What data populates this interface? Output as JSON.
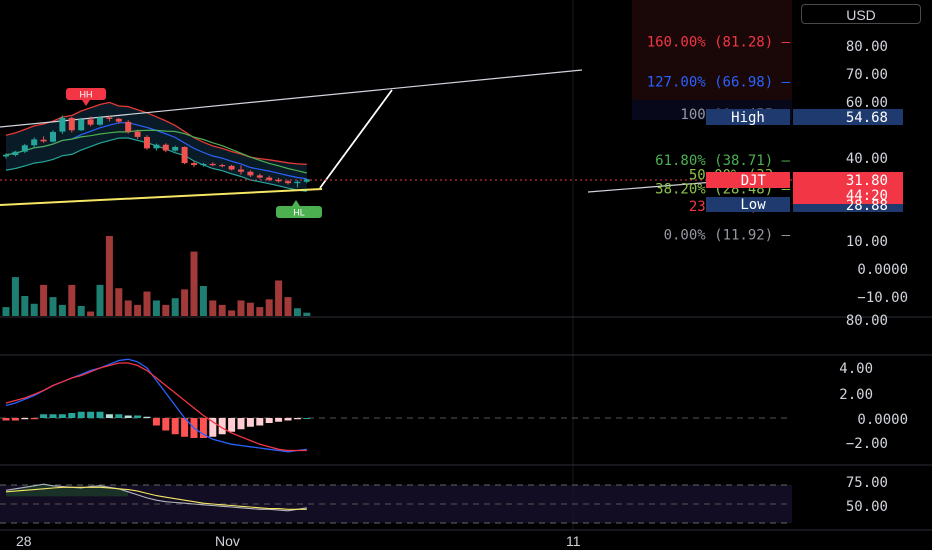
{
  "currency_button": "USD",
  "colors": {
    "up": "#26a69a",
    "down": "#ef5350",
    "fib_red": "#f23645",
    "fib_blue": "#2962ff",
    "fib_gray": "#9598a1",
    "fib_green": "#4caf50",
    "fib_lime": "#8bc34a",
    "trendline": "#ffffff",
    "support": "#f5e663",
    "macd": "#2962ff",
    "signal": "#f23645"
  },
  "price_axis": [
    "80.00",
    "70.00",
    "60.00",
    "50.00",
    "40.00",
    "30.00",
    "20.00",
    "10.00",
    "0.0000",
    "−10.00",
    "80.00"
  ],
  "macd_axis": [
    "4.00",
    "2.00",
    "0.0000",
    "−2.00"
  ],
  "rsi_axis": [
    "75.00",
    "50.00"
  ],
  "date_axis": [
    "28",
    "Nov",
    "11"
  ],
  "price_tags": {
    "high_label": "High",
    "high_value": "54.68",
    "ticker": "DJT",
    "last_price": "31.80",
    "countdown": "44:20",
    "low_label": "Low",
    "low_value": "28.88"
  },
  "fib_levels": [
    {
      "text": "160.00% (81.28)",
      "ratio": 1.6,
      "price": 81.28,
      "color": "#f23645"
    },
    {
      "text": "127.00% (66.98)",
      "ratio": 1.27,
      "price": 66.98,
      "color": "#2962ff"
    },
    {
      "text": "100.00% (55",
      "ratio": 1.0,
      "price": 55.2,
      "color": "#9598a1"
    },
    {
      "text": "61.80% (38.71)",
      "ratio": 0.618,
      "price": 38.71,
      "color": "#4caf50"
    },
    {
      "text": "50.00% (33",
      "ratio": 0.5,
      "price": 33.6,
      "color": "#8bc34a"
    },
    {
      "text": "38.20% (28.48)",
      "ratio": 0.382,
      "price": 28.48,
      "color": "#8bc34a"
    },
    {
      "text": "23.60% (22",
      "ratio": 0.236,
      "price": 22.2,
      "color": "#f23645"
    },
    {
      "text": "0.00% (11.92)",
      "ratio": 0.0,
      "price": 11.92,
      "color": "#9598a1"
    }
  ],
  "annotations": {
    "hh": "HH",
    "hl": "HL"
  },
  "chart_data": {
    "type": "candlestick",
    "symbol": "DJT",
    "candles": [
      [
        40.0,
        41.2,
        39.2,
        40.6
      ],
      [
        40.5,
        42.0,
        40.0,
        41.7
      ],
      [
        41.7,
        44.5,
        41.2,
        44.0
      ],
      [
        44.0,
        46.8,
        43.0,
        46.1
      ],
      [
        46.0,
        47.2,
        44.9,
        45.4
      ],
      [
        45.3,
        49.4,
        45.0,
        48.8
      ],
      [
        48.9,
        54.7,
        48.1,
        53.8
      ],
      [
        53.8,
        54.2,
        48.6,
        49.4
      ],
      [
        49.4,
        53.9,
        49.1,
        53.3
      ],
      [
        53.3,
        54.3,
        50.8,
        51.4
      ],
      [
        51.4,
        54.4,
        51.0,
        54.0
      ],
      [
        54.0,
        54.6,
        52.6,
        53.5
      ],
      [
        53.5,
        53.9,
        51.8,
        52.5
      ],
      [
        52.4,
        53.0,
        48.2,
        48.9
      ],
      [
        48.9,
        49.6,
        46.3,
        47.0
      ],
      [
        47.0,
        47.6,
        42.4,
        42.9
      ],
      [
        42.9,
        44.6,
        42.1,
        44.2
      ],
      [
        44.2,
        44.7,
        41.5,
        42.1
      ],
      [
        42.1,
        43.9,
        41.7,
        43.4
      ],
      [
        43.4,
        43.6,
        37.2,
        37.6
      ],
      [
        37.6,
        38.3,
        36.2,
        36.9
      ],
      [
        36.9,
        37.7,
        36.3,
        37.3
      ],
      [
        37.3,
        37.9,
        36.5,
        36.9
      ],
      [
        36.9,
        37.4,
        36.1,
        36.6
      ],
      [
        36.6,
        37.0,
        35.0,
        35.3
      ],
      [
        35.3,
        36.8,
        33.5,
        34.5
      ],
      [
        34.5,
        35.0,
        32.6,
        33.2
      ],
      [
        33.2,
        33.8,
        32.0,
        32.4
      ],
      [
        32.4,
        33.1,
        31.1,
        31.6
      ],
      [
        31.6,
        32.3,
        30.6,
        31.1
      ],
      [
        31.1,
        31.6,
        29.9,
        30.4
      ],
      [
        30.4,
        31.4,
        28.9,
        30.9
      ],
      [
        30.9,
        31.9,
        30.4,
        31.8
      ]
    ],
    "volume": [
      8,
      35,
      18,
      11,
      28,
      17,
      10,
      28,
      9,
      4,
      28,
      72,
      25,
      14,
      10,
      22,
      14,
      10,
      16,
      24,
      58,
      27,
      14,
      10,
      5,
      14,
      12,
      8,
      15,
      32,
      17,
      7,
      3
    ],
    "macd": [
      1.0,
      1.2,
      1.5,
      1.8,
      2.2,
      2.6,
      2.9,
      3.2,
      3.5,
      3.8,
      4.0,
      4.3,
      4.6,
      4.7,
      4.5,
      4.0,
      3.0,
      2.0,
      1.0,
      0.0,
      -0.8,
      -1.3,
      -1.7,
      -1.9,
      -2.1,
      -2.2,
      -2.3,
      -2.4,
      -2.5,
      -2.6,
      -2.7,
      -2.6,
      -2.5
    ],
    "signal": [
      1.2,
      1.4,
      1.6,
      1.9,
      2.2,
      2.6,
      2.9,
      3.2,
      3.4,
      3.7,
      4.0,
      4.2,
      4.4,
      4.4,
      4.2,
      3.8,
      3.2,
      2.6,
      2.0,
      1.4,
      0.8,
      0.2,
      -0.3,
      -0.8,
      -1.2,
      -1.5,
      -1.8,
      -2.1,
      -2.3,
      -2.5,
      -2.6,
      -2.6,
      -2.6
    ],
    "histogram": [
      -0.2,
      -0.2,
      -0.1,
      -0.1,
      0.3,
      0.3,
      0.3,
      0.4,
      0.5,
      0.5,
      0.5,
      0.3,
      0.3,
      0.2,
      0.2,
      0.1,
      -0.6,
      -1.0,
      -1.3,
      -1.5,
      -1.6,
      -1.6,
      -1.5,
      -1.3,
      -1.1,
      -0.9,
      -0.7,
      -0.6,
      -0.4,
      -0.3,
      -0.2,
      -0.1,
      0.0
    ],
    "rsi": [
      68,
      70,
      72,
      74,
      76,
      74,
      73,
      72,
      71,
      73,
      74,
      72,
      70,
      66,
      62,
      58,
      55,
      53,
      52,
      51,
      50,
      49,
      48,
      47,
      46,
      45,
      44,
      43,
      43,
      42,
      41,
      43,
      45
    ],
    "rsi_ma": [
      66,
      67,
      68,
      69,
      70,
      71,
      72,
      72,
      72,
      72,
      72,
      71,
      70,
      69,
      67,
      64,
      61,
      59,
      57,
      55,
      53,
      51,
      50,
      49,
      48,
      47,
      46,
      45,
      44,
      44,
      43,
      43,
      43
    ],
    "ylim": [
      -13,
      90
    ],
    "macd_ylim": [
      -3.5,
      5.5
    ],
    "rsi_ylim": [
      35,
      85
    ]
  }
}
